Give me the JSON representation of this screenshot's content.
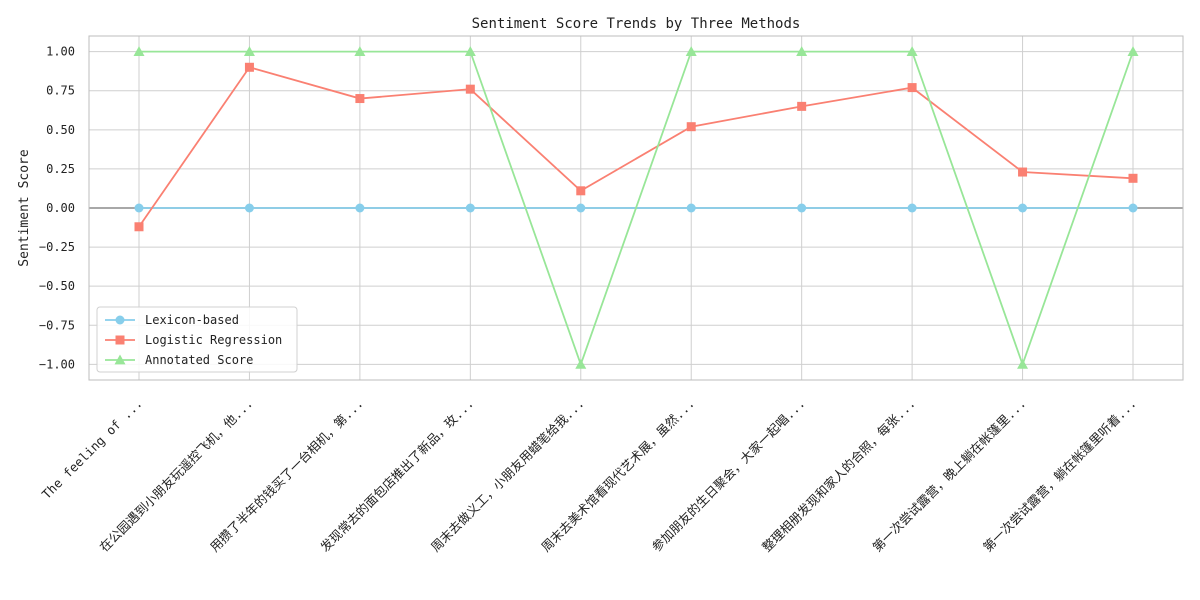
{
  "chart_data": {
    "type": "line",
    "title": "Sentiment Score Trends by Three Methods",
    "xlabel": "",
    "ylabel": "Sentiment Score",
    "ylim": [
      -1.1,
      1.1
    ],
    "yticks": [
      1.0,
      0.75,
      0.5,
      0.25,
      0.0,
      -0.25,
      -0.5,
      -0.75,
      -1.0
    ],
    "ytick_labels": [
      "1.00",
      "0.75",
      "0.50",
      "0.25",
      "0.00",
      "−0.25",
      "−0.50",
      "−0.75",
      "−1.00"
    ],
    "grid": true,
    "legend_position": "lower-left",
    "zero_line": true,
    "categories": [
      "The feeling of ...",
      "在公园遇到小朋友玩遥控飞机，他...",
      "用攒了半年的钱买了一台相机，第...",
      "发现常去的面包店推出了新品，玫...",
      "周末去做义工，小朋友用蜡笔给我...",
      "周末去美术馆看现代艺术展，虽然...",
      "参加朋友的生日聚会，大家一起唱...",
      "整理相册发现和家人的合照，每张...",
      "第一次尝试露营，晚上躺在帐篷里...",
      "第一次尝试露营，躺在帐篷里听着..."
    ],
    "series": [
      {
        "name": "Lexicon-based",
        "color": "#87ceeb",
        "marker": "circle",
        "values": [
          0,
          0,
          0,
          0,
          0,
          0,
          0,
          0,
          0,
          0
        ]
      },
      {
        "name": "Logistic Regression",
        "color": "#fa8072",
        "marker": "square",
        "values": [
          -0.12,
          0.9,
          0.7,
          0.76,
          0.11,
          0.52,
          0.65,
          0.77,
          0.23,
          0.19
        ]
      },
      {
        "name": "Annotated Score",
        "color": "#98e698",
        "marker": "triangle",
        "values": [
          1,
          1,
          1,
          1,
          -1,
          1,
          1,
          1,
          -1,
          1
        ]
      }
    ]
  }
}
